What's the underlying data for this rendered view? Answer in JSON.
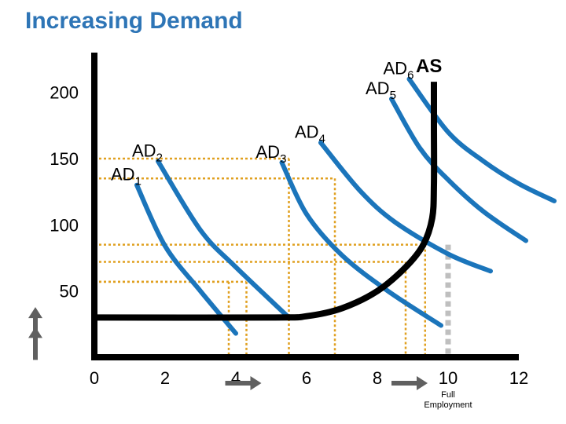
{
  "title": "Increasing Demand",
  "colors": {
    "title": "#2e75b6",
    "ad_curve": "#1b75bb",
    "as_curve": "#000000",
    "guide": "#e0a020",
    "full_employment_line": "#bfbfbf",
    "arrow": "#606060",
    "highlight_tick": "#2e75b6"
  },
  "chart_data": {
    "type": "line",
    "title": "Increasing Demand",
    "xlabel": "",
    "ylabel": "",
    "xlim": [
      0,
      12
    ],
    "ylim": [
      0,
      230
    ],
    "x_ticks": [
      "0",
      "2",
      "4",
      "6",
      "8",
      "10",
      "12"
    ],
    "y_ticks": [
      "50",
      "100",
      "150",
      "200"
    ],
    "highlight_tick": "10",
    "full_employment_label": "Full Employment",
    "full_employment_x": 10,
    "aggregate_supply": {
      "name": "AS",
      "points": [
        [
          0,
          30
        ],
        [
          5,
          30
        ],
        [
          6,
          31
        ],
        [
          7,
          37
        ],
        [
          8,
          50
        ],
        [
          8.8,
          68
        ],
        [
          9.3,
          85
        ],
        [
          9.55,
          105
        ],
        [
          9.6,
          130
        ],
        [
          9.6,
          175
        ],
        [
          9.6,
          208
        ]
      ]
    },
    "demand_curves": [
      {
        "name": "AD",
        "subscript": "1",
        "points": [
          [
            1.2,
            130
          ],
          [
            2,
            84
          ],
          [
            3,
            50
          ],
          [
            4,
            18
          ]
        ]
      },
      {
        "name": "AD",
        "subscript": "2",
        "points": [
          [
            1.8,
            148
          ],
          [
            3,
            96
          ],
          [
            4,
            68
          ],
          [
            5.5,
            30
          ]
        ]
      },
      {
        "name": "AD",
        "subscript": "3",
        "points": [
          [
            5.3,
            147
          ],
          [
            6,
            108
          ],
          [
            7,
            77
          ],
          [
            8.3,
            50
          ],
          [
            9.8,
            24
          ]
        ]
      },
      {
        "name": "AD",
        "subscript": "4",
        "points": [
          [
            6.4,
            162
          ],
          [
            7.5,
            126
          ],
          [
            8.5,
            102
          ],
          [
            10,
            78
          ],
          [
            11.2,
            65
          ]
        ]
      },
      {
        "name": "AD",
        "subscript": "5",
        "points": [
          [
            8.4,
            195
          ],
          [
            9.2,
            158
          ],
          [
            10,
            134
          ],
          [
            11,
            110
          ],
          [
            12.2,
            88
          ]
        ]
      },
      {
        "name": "AD",
        "subscript": "6",
        "points": [
          [
            8.9,
            210
          ],
          [
            10,
            170
          ],
          [
            11,
            148
          ],
          [
            12,
            131
          ],
          [
            13,
            118
          ]
        ]
      }
    ],
    "guides": [
      {
        "price": 150,
        "quantity": 5.5
      },
      {
        "price": 135,
        "quantity": 6.8
      },
      {
        "price": 85,
        "quantity": 9.35
      },
      {
        "price": 72,
        "quantity": 8.8
      },
      {
        "price": 57,
        "quantity": 4.3
      },
      {
        "price": 57,
        "quantity": 3.8
      }
    ],
    "level_marks": [
      {
        "price": 65,
        "quantity": 3.7
      },
      {
        "price": 50,
        "quantity": 5.5
      }
    ]
  }
}
